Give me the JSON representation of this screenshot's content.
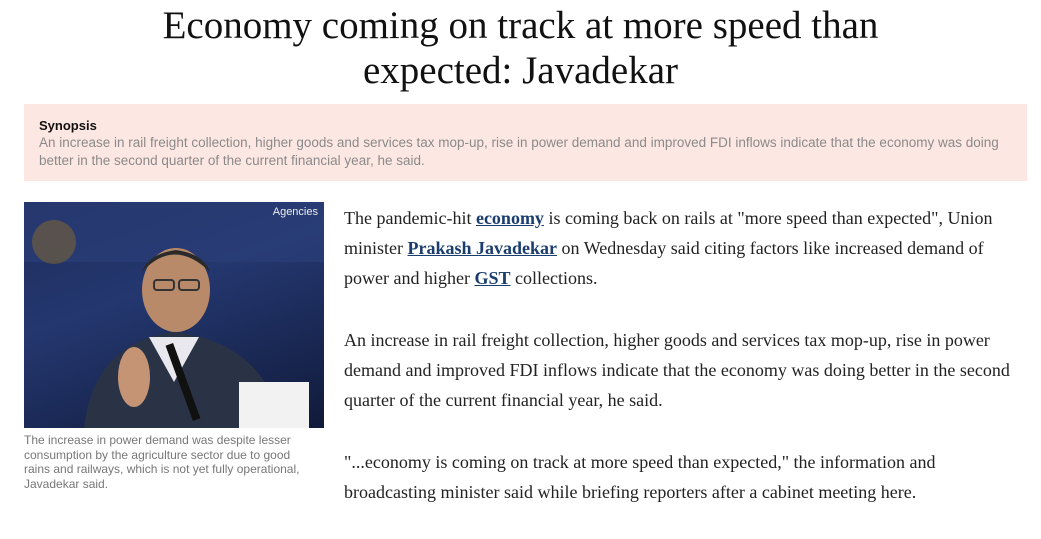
{
  "article": {
    "title": "Economy coming on track at more speed than expected: Javadekar",
    "synopsis": {
      "label": "Synopsis",
      "text": "An increase in rail freight collection, higher goods and services tax mop-up, rise in power demand and improved FDI inflows indicate that the economy was doing better in the second quarter of the current financial year, he said."
    },
    "image": {
      "credit": "Agencies",
      "caption": "The increase in power demand was despite lesser consumption by the agriculture sector due to good rains and railways, which is not yet fully operational, Javadekar said."
    },
    "paragraphs": [
      [
        "The pandemic-hit ",
        "economy",
        " is coming back on rails at \"more speed than expected\", Union minister ",
        "Prakash Javadekar",
        " on Wednesday said citing factors like increased demand of power and higher ",
        "GST",
        " collections."
      ],
      [
        "An increase in rail freight collection, higher goods and services tax mop-up, rise in power demand and improved FDI inflows indicate that the economy was doing better in the second quarter of the current financial year, he said."
      ],
      [
        "\"...economy is coming on track at more speed than expected,\" the information and broadcasting minister said while briefing reporters after a cabinet meeting here."
      ]
    ]
  }
}
